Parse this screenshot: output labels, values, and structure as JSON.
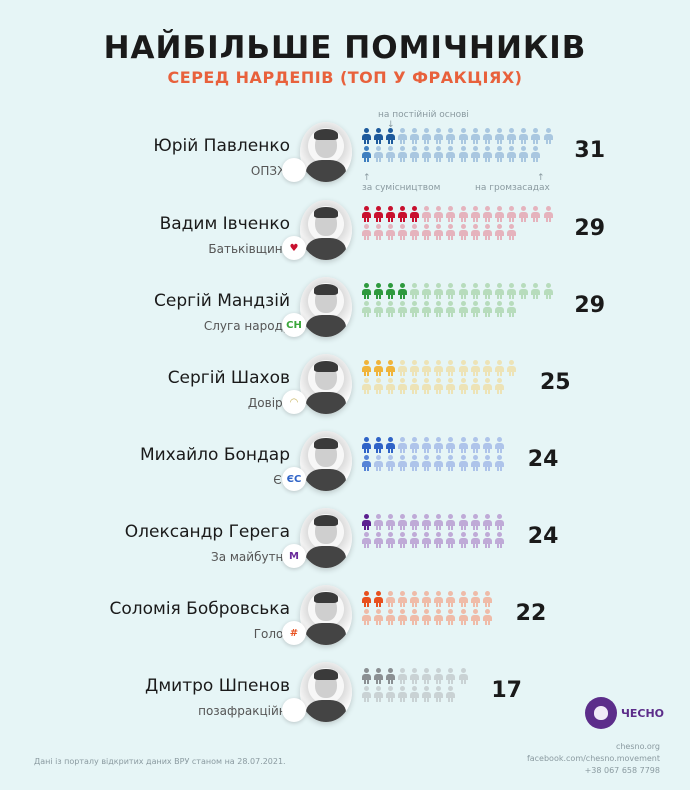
{
  "header": {
    "title": "НАЙБІЛЬШЕ ПОМІЧНИКІВ",
    "subtitle": "СЕРЕД НАРДЕПІВ (ТОП У ФРАКЦІЯХ)"
  },
  "legend": {
    "permanent": "на постійній основі",
    "part_time": "за сумісництвом",
    "voluntary": "на громзасадах"
  },
  "deputies": [
    {
      "name": "Юрій Павленко",
      "faction": "ОПЗЖ",
      "badge": "sun",
      "badge_text": "",
      "total": "31",
      "top_row": 16,
      "bottom_row": 15,
      "permanent": 3,
      "part_time_bottom": 1,
      "dark": "#1d5a9c",
      "mid": "#3e7fbf",
      "light": "#a9c7e0",
      "badge_color": "#1f80c0"
    },
    {
      "name": "Вадим Івченко",
      "faction": "Батьківщина",
      "badge": "heart",
      "badge_text": "♥",
      "total": "29",
      "top_row": 16,
      "bottom_row": 13,
      "permanent": 5,
      "part_time_bottom": 0,
      "dark": "#c8102e",
      "mid": "#c8102e",
      "light": "#e5b3bd",
      "badge_color": "#c8102e"
    },
    {
      "name": "Сергій Мандзій",
      "faction": "Слуга народу",
      "badge": "sn",
      "badge_text": "СН",
      "total": "29",
      "top_row": 16,
      "bottom_row": 13,
      "permanent": 4,
      "part_time_bottom": 0,
      "dark": "#2e9a3e",
      "mid": "#2e9a3e",
      "light": "#b7dcbc",
      "badge_color": "#3aa63a"
    },
    {
      "name": "Сергій Шахов",
      "faction": "Довіра",
      "badge": "arc",
      "badge_text": "◠",
      "total": "25",
      "top_row": 13,
      "bottom_row": 12,
      "permanent": 3,
      "part_time_bottom": 0,
      "dark": "#f0b43a",
      "mid": "#f0b43a",
      "light": "#ede3b6",
      "badge_color": "#c7b25a"
    },
    {
      "name": "Михайло Бондар",
      "faction": "ЄС",
      "badge": "es",
      "badge_text": "ЄС",
      "total": "24",
      "top_row": 12,
      "bottom_row": 12,
      "permanent": 3,
      "part_time_bottom": 1,
      "dark": "#2f63c7",
      "mid": "#5583d6",
      "light": "#aec4ea",
      "badge_color": "#2f63c7"
    },
    {
      "name": "Олександр Герега",
      "faction": "За майбутнє",
      "badge": "m",
      "badge_text": "M",
      "total": "24",
      "top_row": 12,
      "bottom_row": 12,
      "permanent": 1,
      "part_time_bottom": 0,
      "dark": "#5b1f8f",
      "mid": "#5b1f8f",
      "light": "#bfaad7",
      "badge_color": "#6a2a9a"
    },
    {
      "name": "Соломія Бобровська",
      "faction": "Голос",
      "badge": "holos",
      "badge_text": "#",
      "total": "22",
      "top_row": 11,
      "bottom_row": 11,
      "permanent": 2,
      "part_time_bottom": 0,
      "dark": "#e8501e",
      "mid": "#e8501e",
      "light": "#efbba8",
      "badge_color": "#e8501e"
    },
    {
      "name": "Дмитро Шпенов",
      "faction": "позафракційні",
      "badge": "person",
      "badge_text": "",
      "total": "17",
      "top_row": 9,
      "bottom_row": 8,
      "permanent": 3,
      "part_time_bottom": 0,
      "dark": "#8a8f92",
      "mid": "#8a8f92",
      "light": "#c9d2d4",
      "badge_color": "#8a8f92"
    }
  ],
  "footer": {
    "source_note": "Дані із порталу відкритих даних ВРУ станом на 28.07.2021.",
    "logo_text": "ЧЕСНО",
    "contacts": [
      "chesno.org",
      "facebook.com/chesno.movement",
      "+38 067 658 7798"
    ]
  },
  "chart_data": {
    "type": "pictogram",
    "title": "НАЙБІЛЬШЕ ПОМІЧНИКІВ",
    "subtitle": "СЕРЕД НАРДЕПІВ (ТОП У ФРАКЦІЯХ)",
    "categories": [
      "Юрій Павленко (ОПЗЖ)",
      "Вадим Івченко (Батьківщина)",
      "Сергій Мандзій (Слуга народу)",
      "Сергій Шахов (Довіра)",
      "Михайло Бондар (ЄС)",
      "Олександр Герега (За майбутнє)",
      "Соломія Бобровська (Голос)",
      "Дмитро Шпенов (позафракційні)"
    ],
    "series": [
      {
        "name": "на постійній основі",
        "values": [
          3,
          5,
          4,
          3,
          3,
          1,
          2,
          3
        ]
      },
      {
        "name": "за сумісництвом",
        "values": [
          1,
          0,
          0,
          0,
          1,
          0,
          0,
          0
        ]
      },
      {
        "name": "на громзасадах",
        "values": [
          27,
          24,
          25,
          22,
          20,
          23,
          20,
          14
        ]
      }
    ],
    "totals": [
      31,
      29,
      29,
      25,
      24,
      24,
      22,
      17
    ],
    "legend_position": "annotated above/below first row",
    "note": "Дані із порталу відкритих даних ВРУ станом на 28.07.2021."
  }
}
